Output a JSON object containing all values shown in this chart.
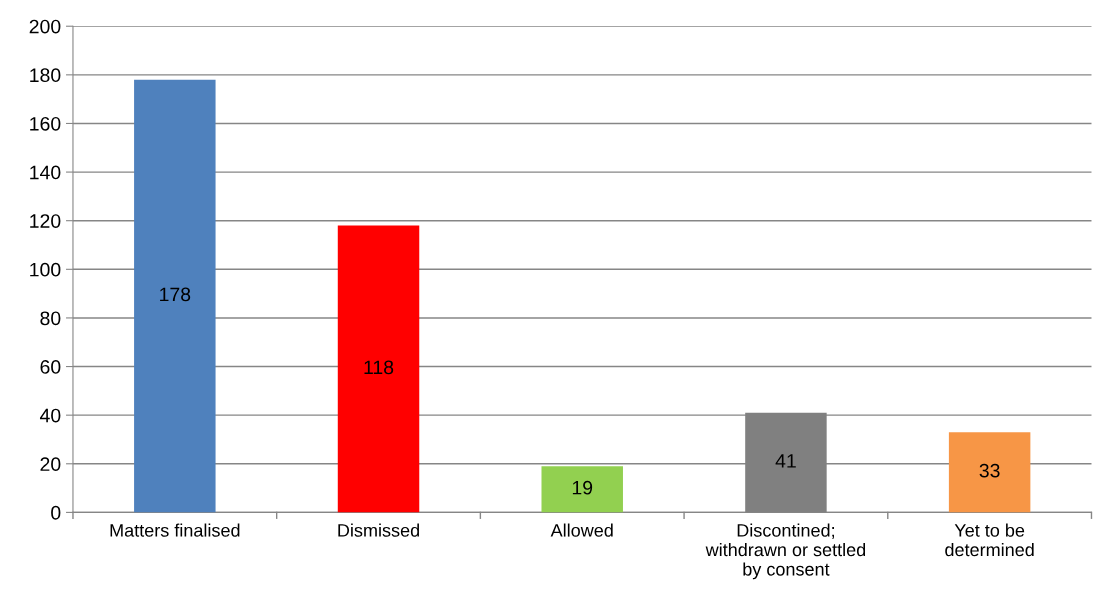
{
  "chart_data": {
    "type": "bar",
    "categories": [
      "Matters finalised",
      "Dismissed",
      "Allowed",
      "Discontined;\nwithdrawn or settled\nby consent",
      "Yet to be\ndetermined"
    ],
    "values": [
      178,
      118,
      19,
      41,
      33
    ],
    "colors": [
      "#4f81bd",
      "#ff0000",
      "#92d050",
      "#808080",
      "#f79646"
    ],
    "ylim": [
      0,
      200
    ],
    "yticks": [
      0,
      20,
      40,
      60,
      80,
      100,
      120,
      140,
      160,
      180,
      200
    ],
    "grid": "y",
    "data_labels": true,
    "legend": false
  }
}
